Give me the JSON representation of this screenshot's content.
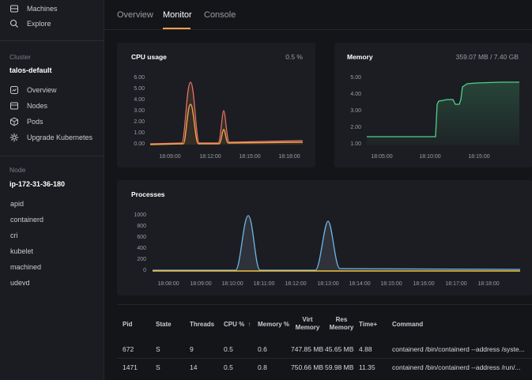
{
  "sidebar": {
    "top_items": [
      {
        "label": "Machines",
        "icon": "machines-icon"
      },
      {
        "label": "Explore",
        "icon": "search-icon"
      }
    ],
    "cluster_heading": "Cluster",
    "cluster_name": "talos-default",
    "cluster_items": [
      {
        "label": "Overview",
        "icon": "overview-icon"
      },
      {
        "label": "Nodes",
        "icon": "nodes-icon"
      },
      {
        "label": "Pods",
        "icon": "pods-icon"
      },
      {
        "label": "Upgrade Kubernetes",
        "icon": "kubernetes-icon"
      }
    ],
    "node_heading": "Node",
    "node_name": "ip-172-31-36-180",
    "services": [
      "apid",
      "containerd",
      "cri",
      "kubelet",
      "machined",
      "udevd"
    ]
  },
  "tabs": [
    {
      "label": "Overview",
      "active": false
    },
    {
      "label": "Monitor",
      "active": true
    },
    {
      "label": "Console",
      "active": false
    }
  ],
  "accent_color": "#f0a24a",
  "cpu": {
    "title": "CPU usage",
    "value": "0.5 %",
    "y_ticks": [
      "6.00",
      "5.00",
      "4.00",
      "3.00",
      "2.00",
      "1.00",
      "0.00"
    ],
    "x_ticks": [
      "18:09:00",
      "18:12:00",
      "18:15:00",
      "18:18:00"
    ]
  },
  "memory": {
    "title": "Memory",
    "value": "359.07 MB / 7.40 GB",
    "y_ticks": [
      "5.00",
      "4.00",
      "3.00",
      "2.00",
      "1.00"
    ],
    "x_ticks": [
      "18:05:00",
      "18:10:00",
      "18:15:00"
    ]
  },
  "processes_chart": {
    "title": "Processes",
    "y_ticks": [
      "1000",
      "800",
      "600",
      "400",
      "200",
      "0"
    ],
    "x_ticks": [
      "18:08:00",
      "18:09:00",
      "18:10:00",
      "18:11:00",
      "18:12:00",
      "18:13:00",
      "18:14:00",
      "18:15:00",
      "18:16:00",
      "18:17:00",
      "18:18:00"
    ]
  },
  "table": {
    "headers": {
      "pid": "Pid",
      "state": "State",
      "threads": "Threads",
      "cpu": "CPU %",
      "sort_icon": "↑",
      "memory": "Memory %",
      "virt_line1": "Virt",
      "virt_line2": "Memory",
      "res_line1": "Res",
      "res_line2": "Memory",
      "time": "Time+",
      "command": "Command"
    },
    "rows": [
      {
        "pid": "672",
        "state": "S",
        "threads": "9",
        "cpu": "0.5",
        "memory": "0.6",
        "virt": "747.85 MB",
        "res": "45.65 MB",
        "time": "4.88",
        "command": "containerd /bin/containerd --address /syste..."
      },
      {
        "pid": "1471",
        "state": "S",
        "threads": "14",
        "cpu": "0.5",
        "memory": "0.8",
        "virt": "750.66 MB",
        "res": "59.98 MB",
        "time": "11.35",
        "command": "containerd /bin/containerd --address /run/..."
      }
    ]
  }
}
